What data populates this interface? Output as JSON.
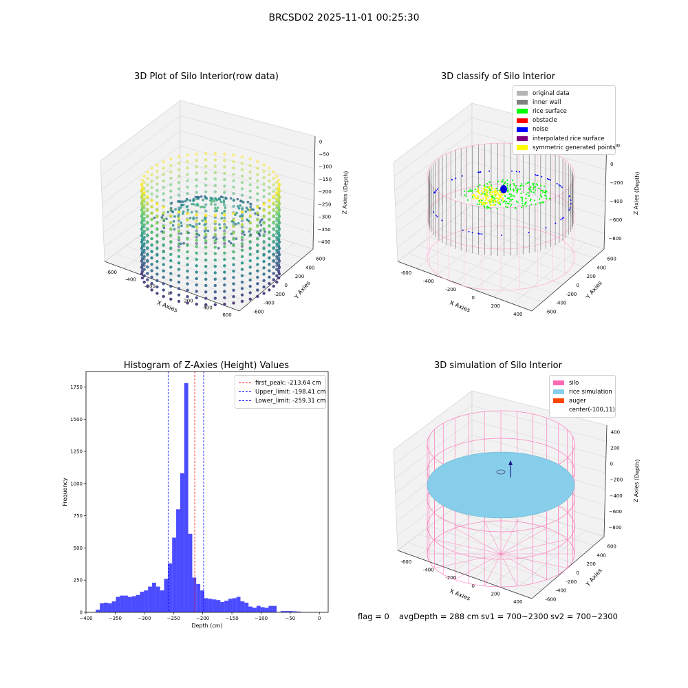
{
  "suptitle": "BRCSD02 2025-11-01 00:25:30",
  "panels": {
    "raw": {
      "title": "3D Plot of Silo Interior(row data)",
      "xlabel": "X Axies",
      "ylabel": "Y Axies",
      "zlabel": "Z Axies (Depth)",
      "xticks": [
        "-600",
        "-400",
        "-200",
        "0",
        "200",
        "400",
        "600"
      ],
      "yticks": [
        "-600",
        "-400",
        "-200",
        "0",
        "200",
        "400",
        "600"
      ],
      "zticks": [
        "0",
        "−50",
        "−100",
        "−150",
        "−200",
        "−250",
        "−300",
        "−350",
        "−400"
      ]
    },
    "classify": {
      "title": "3D classify of Silo Interior",
      "xlabel": "X Axies",
      "ylabel": "Y Axies",
      "zlabel": "Z Axies (Depth)",
      "xticks": [
        "-600",
        "-400",
        "-200",
        "0",
        "200",
        "400"
      ],
      "yticks": [
        "-600",
        "-400",
        "-200",
        "0",
        "200",
        "400",
        "600"
      ],
      "zticks": [
        "200",
        "0",
        "−200",
        "−400",
        "−600",
        "−800"
      ],
      "legend": [
        {
          "label": "original data",
          "color": "#b3b3b3"
        },
        {
          "label": "inner wall",
          "color": "#808080"
        },
        {
          "label": "rice surface",
          "color": "#00ff00"
        },
        {
          "label": "obstacle",
          "color": "#ff0000"
        },
        {
          "label": "noise",
          "color": "#0000ff"
        },
        {
          "label": "interpolated rice surface",
          "color": "#800080"
        },
        {
          "label": "symmetric generated points",
          "color": "#ffff00"
        }
      ]
    },
    "simulation": {
      "title": "3D simulation of Silo Interior",
      "xlabel": "X Axies",
      "ylabel": "Y Axies",
      "zlabel": "Z Axies (Depth)",
      "xticks": [
        "-600",
        "-400",
        "-200",
        "0",
        "200",
        "400"
      ],
      "yticks": [
        "-600",
        "-400",
        "-200",
        "0",
        "200",
        "400",
        "600"
      ],
      "zticks": [
        "400",
        "200",
        "0",
        "−200",
        "−400",
        "−600",
        "−800"
      ],
      "legend": [
        {
          "label": "silo",
          "color": "#ff69b4"
        },
        {
          "label": "rice simulation",
          "color": "#87ceeb"
        },
        {
          "label": "auger",
          "color": "#ff4500"
        },
        {
          "label": "center(-100,11)",
          "color": ""
        }
      ]
    }
  },
  "colors": {
    "histogram": "#0000ff",
    "first_peak_line": "#ff0000",
    "limit_line": "#0000ff",
    "silo_wire": "#ff69b4",
    "rice_surface": "#87ceeb"
  },
  "status": {
    "flag": "flag = 0",
    "avg_depth": "avgDepth = 288 cm",
    "sv1": "sv1 = 700~2300",
    "sv2": "sv2 = 700~2300"
  },
  "chart_data": [
    {
      "type": "histogram",
      "title": "Histogram of Z-Axies (Height) Values",
      "xlabel": "Depth (cm)",
      "ylabel": "Frequency",
      "xlim": [
        -400,
        15
      ],
      "ylim": [
        0,
        1870
      ],
      "xticks": [
        -400,
        -350,
        -300,
        -250,
        -200,
        -150,
        -100,
        -50,
        0
      ],
      "yticks": [
        0,
        250,
        500,
        750,
        1000,
        1250,
        1500,
        1750
      ],
      "bin_width": 6.88,
      "bins_start": [
        -383.2,
        -376.3,
        -369.4,
        -362.6,
        -355.7,
        -348.8,
        -341.9,
        -335.0,
        -328.1,
        -321.2,
        -314.4,
        -307.5,
        -300.6,
        -293.7,
        -286.8,
        -279.9,
        -273.0,
        -266.2,
        -259.3,
        -252.4,
        -245.5,
        -238.6,
        -231.7,
        -224.8,
        -218.0,
        -211.1,
        -204.2,
        -197.3,
        -190.4,
        -183.5,
        -176.6,
        -169.8,
        -162.9,
        -156.0,
        -149.1,
        -142.2,
        -135.3,
        -128.4,
        -121.6,
        -114.7,
        -107.8,
        -100.9,
        -94.0,
        -87.1,
        -80.2,
        -73.4,
        -66.5,
        -59.6,
        -52.7,
        -45.8,
        -38.9,
        -32.0,
        -25.2,
        -18.3,
        -11.4,
        -4.5
      ],
      "counts": [
        20,
        70,
        75,
        70,
        85,
        120,
        130,
        130,
        120,
        125,
        135,
        160,
        170,
        200,
        230,
        200,
        170,
        260,
        380,
        580,
        800,
        1080,
        1780,
        610,
        270,
        220,
        170,
        110,
        105,
        100,
        95,
        80,
        90,
        105,
        110,
        120,
        85,
        75,
        45,
        35,
        50,
        40,
        35,
        50,
        50,
        0,
        10,
        10,
        10,
        8,
        6,
        0,
        0,
        0,
        0,
        0
      ],
      "vlines": [
        {
          "label": "first_peak: -213.64 cm",
          "x": -213.64,
          "color": "red"
        },
        {
          "label": "Upper_limit: -198.41 cm",
          "x": -198.41,
          "color": "blue"
        },
        {
          "label": "Lower_limit: -259.31 cm",
          "x": -259.31,
          "color": "blue"
        }
      ],
      "legend_position": "upper right"
    }
  ]
}
